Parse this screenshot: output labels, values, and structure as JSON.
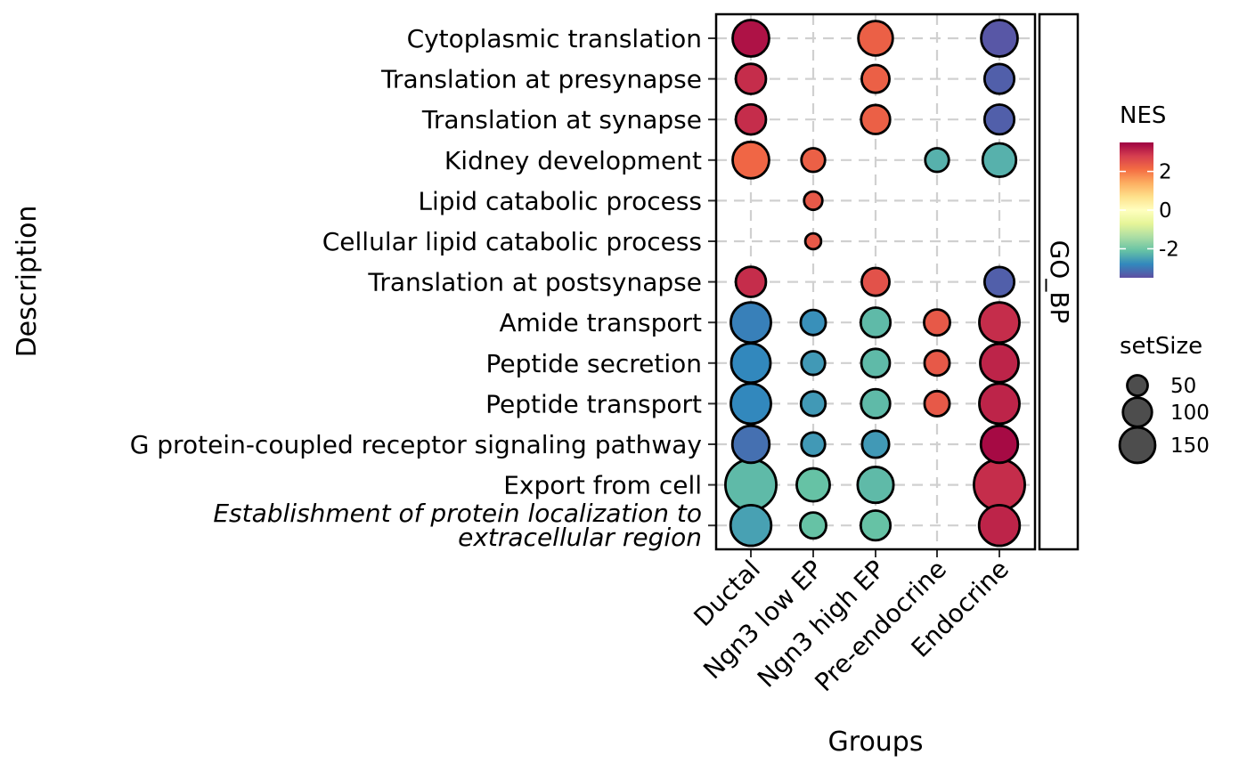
{
  "chart_data": {
    "type": "scatter",
    "subtype": "dotplot",
    "xlabel": "Groups",
    "ylabel": "Description",
    "facet_label": "GO_BP",
    "grid": "dashed",
    "groups": [
      "Ductal",
      "Ngn3 low EP",
      "Ngn3 high EP",
      "Pre-endocrine",
      "Endocrine"
    ],
    "terms": [
      "Cytoplasmic translation",
      "Translation at presynapse",
      "Translation at synapse",
      "Kidney development",
      "Lipid catabolic process",
      "Cellular lipid catabolic process",
      "Translation at postsynapse",
      "Amide transport",
      "Peptide secretion",
      "Peptide transport",
      "G protein-coupled receptor signaling pathway",
      "Export from cell",
      "Establishment of protein localization to extracellular region"
    ],
    "italic_terms": [
      "Establishment of protein localization to extracellular region"
    ],
    "points": [
      {
        "term": "Cytoplasmic translation",
        "group": "Ductal",
        "nes": 3.3,
        "setSize": 95
      },
      {
        "term": "Cytoplasmic translation",
        "group": "Ngn3 high EP",
        "nes": 2.3,
        "setSize": 85
      },
      {
        "term": "Cytoplasmic translation",
        "group": "Endocrine",
        "nes": -3.4,
        "setSize": 95
      },
      {
        "term": "Translation at presynapse",
        "group": "Ductal",
        "nes": 3.0,
        "setSize": 65
      },
      {
        "term": "Translation at presynapse",
        "group": "Ngn3 high EP",
        "nes": 2.3,
        "setSize": 55
      },
      {
        "term": "Translation at presynapse",
        "group": "Endocrine",
        "nes": -3.3,
        "setSize": 63
      },
      {
        "term": "Translation at synapse",
        "group": "Ductal",
        "nes": 3.0,
        "setSize": 65
      },
      {
        "term": "Translation at synapse",
        "group": "Ngn3 high EP",
        "nes": 2.3,
        "setSize": 60
      },
      {
        "term": "Translation at synapse",
        "group": "Endocrine",
        "nes": -3.3,
        "setSize": 63
      },
      {
        "term": "Kidney development",
        "group": "Ductal",
        "nes": 2.2,
        "setSize": 95
      },
      {
        "term": "Kidney development",
        "group": "Ngn3 low EP",
        "nes": 2.3,
        "setSize": 40
      },
      {
        "term": "Kidney development",
        "group": "Pre-endocrine",
        "nes": -2.3,
        "setSize": 40
      },
      {
        "term": "Kidney development",
        "group": "Endocrine",
        "nes": -2.3,
        "setSize": 80
      },
      {
        "term": "Lipid catabolic process",
        "group": "Ngn3 low EP",
        "nes": 2.4,
        "setSize": 24
      },
      {
        "term": "Cellular lipid catabolic process",
        "group": "Ngn3 low EP",
        "nes": 2.4,
        "setSize": 18
      },
      {
        "term": "Translation at postsynapse",
        "group": "Ductal",
        "nes": 3.0,
        "setSize": 65
      },
      {
        "term": "Translation at postsynapse",
        "group": "Ngn3 high EP",
        "nes": 2.5,
        "setSize": 55
      },
      {
        "term": "Translation at postsynapse",
        "group": "Endocrine",
        "nes": -3.3,
        "setSize": 63
      },
      {
        "term": "Amide transport",
        "group": "Ductal",
        "nes": -2.9,
        "setSize": 115
      },
      {
        "term": "Amide transport",
        "group": "Ngn3 low EP",
        "nes": -2.7,
        "setSize": 45
      },
      {
        "term": "Amide transport",
        "group": "Ngn3 high EP",
        "nes": -2.2,
        "setSize": 63
      },
      {
        "term": "Amide transport",
        "group": "Pre-endocrine",
        "nes": 2.4,
        "setSize": 48
      },
      {
        "term": "Amide transport",
        "group": "Endocrine",
        "nes": 3.0,
        "setSize": 115
      },
      {
        "term": "Peptide secretion",
        "group": "Ductal",
        "nes": -2.8,
        "setSize": 110
      },
      {
        "term": "Peptide secretion",
        "group": "Ngn3 low EP",
        "nes": -2.6,
        "setSize": 40
      },
      {
        "term": "Peptide secretion",
        "group": "Ngn3 high EP",
        "nes": -2.2,
        "setSize": 58
      },
      {
        "term": "Peptide secretion",
        "group": "Pre-endocrine",
        "nes": 2.4,
        "setSize": 45
      },
      {
        "term": "Peptide secretion",
        "group": "Endocrine",
        "nes": 3.1,
        "setSize": 105
      },
      {
        "term": "Peptide transport",
        "group": "Ductal",
        "nes": -2.8,
        "setSize": 115
      },
      {
        "term": "Peptide transport",
        "group": "Ngn3 low EP",
        "nes": -2.6,
        "setSize": 43
      },
      {
        "term": "Peptide transport",
        "group": "Ngn3 high EP",
        "nes": -2.2,
        "setSize": 60
      },
      {
        "term": "Peptide transport",
        "group": "Pre-endocrine",
        "nes": 2.4,
        "setSize": 45
      },
      {
        "term": "Peptide transport",
        "group": "Endocrine",
        "nes": 3.1,
        "setSize": 115
      },
      {
        "term": "G protein-coupled receptor signaling pathway",
        "group": "Ductal",
        "nes": -3.1,
        "setSize": 98
      },
      {
        "term": "G protein-coupled receptor signaling pathway",
        "group": "Ngn3 low EP",
        "nes": -2.6,
        "setSize": 40
      },
      {
        "term": "G protein-coupled receptor signaling pathway",
        "group": "Ngn3 high EP",
        "nes": -2.6,
        "setSize": 52
      },
      {
        "term": "G protein-coupled receptor signaling pathway",
        "group": "Endocrine",
        "nes": 3.4,
        "setSize": 98
      },
      {
        "term": "Export from cell",
        "group": "Ductal",
        "nes": -2.2,
        "setSize": 185
      },
      {
        "term": "Export from cell",
        "group": "Ngn3 low EP",
        "nes": -2.1,
        "setSize": 78
      },
      {
        "term": "Export from cell",
        "group": "Ngn3 high EP",
        "nes": -2.2,
        "setSize": 92
      },
      {
        "term": "Export from cell",
        "group": "Endocrine",
        "nes": 3.0,
        "setSize": 185
      },
      {
        "term": "Establishment of protein localization to extracellular region",
        "group": "Ductal",
        "nes": -2.5,
        "setSize": 118
      },
      {
        "term": "Establishment of protein localization to extracellular region",
        "group": "Ngn3 low EP",
        "nes": -2.1,
        "setSize": 48
      },
      {
        "term": "Establishment of protein localization to extracellular region",
        "group": "Ngn3 high EP",
        "nes": -2.1,
        "setSize": 63
      },
      {
        "term": "Establishment of protein localization to extracellular region",
        "group": "Endocrine",
        "nes": 3.1,
        "setSize": 118
      }
    ],
    "color_legend": {
      "title": "NES",
      "range": [
        -3.5,
        3.5
      ],
      "ticks": [
        2,
        0,
        -2
      ],
      "tick_labels": [
        "2",
        "0",
        "-2"
      ],
      "palette": [
        "#5E4FA2",
        "#3288BD",
        "#66C2A5",
        "#ABDDA4",
        "#E6F598",
        "#FFFFBF",
        "#FEE08B",
        "#FDAE61",
        "#F46D43",
        "#D53E4F",
        "#9E0142"
      ]
    },
    "size_legend": {
      "title": "setSize",
      "values": [
        50,
        100,
        150
      ],
      "labels": [
        "50",
        "100",
        "150"
      ],
      "fill": "#4d4d4d"
    }
  }
}
